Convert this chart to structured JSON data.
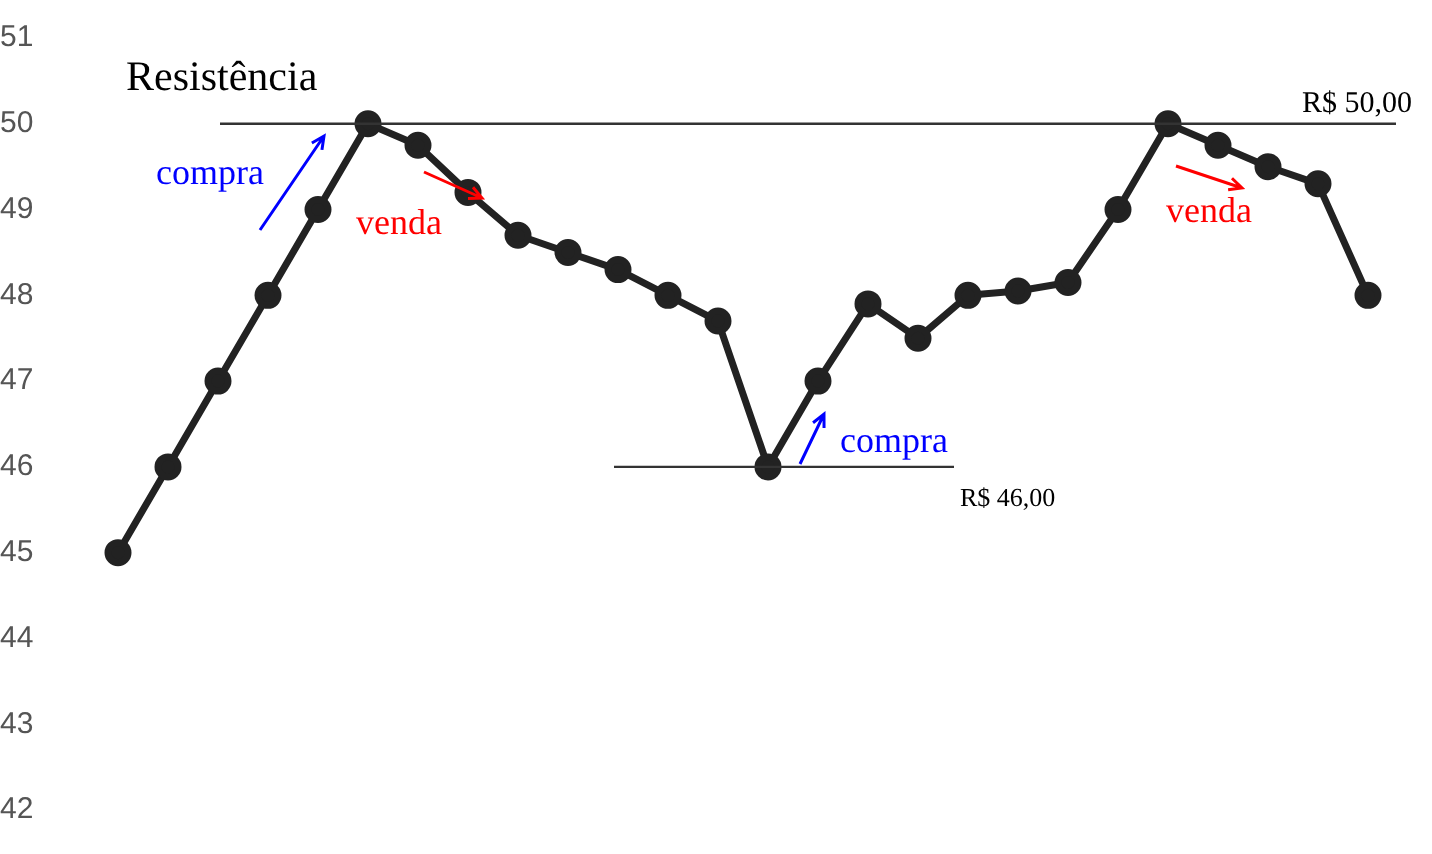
{
  "chart_data": {
    "type": "line",
    "categories": [
      null,
      null,
      null,
      null,
      null,
      null,
      null,
      null,
      null,
      null,
      null,
      null,
      null,
      null,
      null,
      null,
      null,
      null,
      null,
      null,
      null,
      null,
      null,
      null,
      null,
      null
    ],
    "series": [
      {
        "color": "#222222",
        "values": [
          45,
          46,
          47,
          48,
          49,
          50,
          49.75,
          49.2,
          48.7,
          48.5,
          48.3,
          48,
          47.7,
          46,
          47,
          47.9,
          47.5,
          48,
          48.05,
          48.15,
          49,
          50,
          49.75,
          49.5,
          49.3,
          48
        ]
      }
    ],
    "ylim": [
      42,
      51
    ],
    "yticks": [
      42,
      43,
      44,
      45,
      46,
      47,
      48,
      49,
      50,
      51
    ],
    "tick_labels": "y",
    "grid": false,
    "legend": false,
    "marker": "circle",
    "line_style": "solid",
    "ref_lines": [
      {
        "axis": "y",
        "value": 50,
        "label": "R$ 50,00",
        "color": "#333333"
      },
      {
        "axis": "y",
        "value": 46,
        "label": "R$ 46,00",
        "color": "#333333"
      }
    ],
    "annotations": [
      "Resistência",
      "compra",
      "venda",
      "compra",
      "venda"
    ]
  }
}
